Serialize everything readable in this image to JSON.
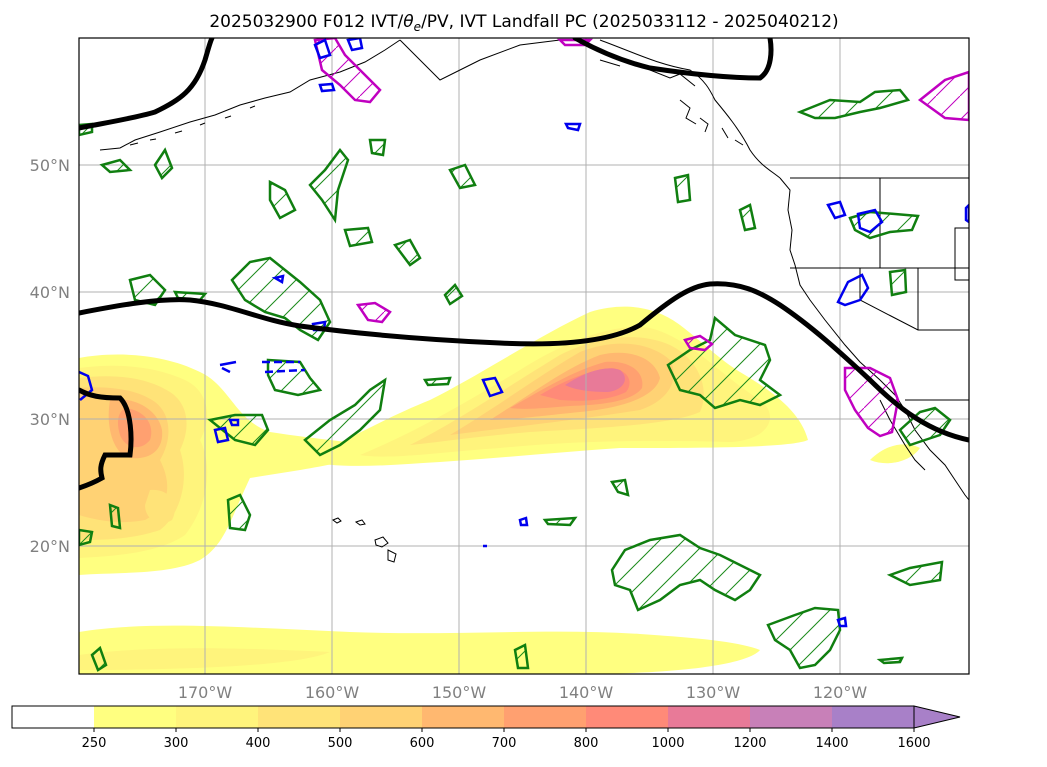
{
  "title_prefix": "2025032900 F012 IVT/",
  "title_theta": "θ",
  "title_theta_sub": "e",
  "title_suffix": "/PV, IVT Landfall PC (2025033112 - 2025040212)",
  "map": {
    "lat_labels": [
      "50°N",
      "40°N",
      "30°N",
      "20°N"
    ],
    "lon_labels": [
      "170°W",
      "160°W",
      "150°W",
      "140°W",
      "130°W",
      "120°W"
    ],
    "grid": true,
    "extent": {
      "lon": [
        -180,
        -110
      ],
      "lat": [
        10,
        60
      ]
    }
  },
  "colorbar": {
    "levels": [
      "250",
      "300",
      "400",
      "500",
      "600",
      "700",
      "800",
      "1000",
      "1200",
      "1400",
      "1600"
    ],
    "colors": [
      "#ffffff",
      "#ffff80",
      "#fff47c",
      "#ffe378",
      "#ffd274",
      "#ffb870",
      "#ffa070",
      "#ff8a78",
      "#e87a98",
      "#c880b8",
      "#a880c8"
    ],
    "extend": "max"
  },
  "layers": {
    "ivt_fill": "IVT",
    "theta_e": "black",
    "pv_positive": "green",
    "pv_negative": "blue",
    "landfall": "magenta"
  }
}
